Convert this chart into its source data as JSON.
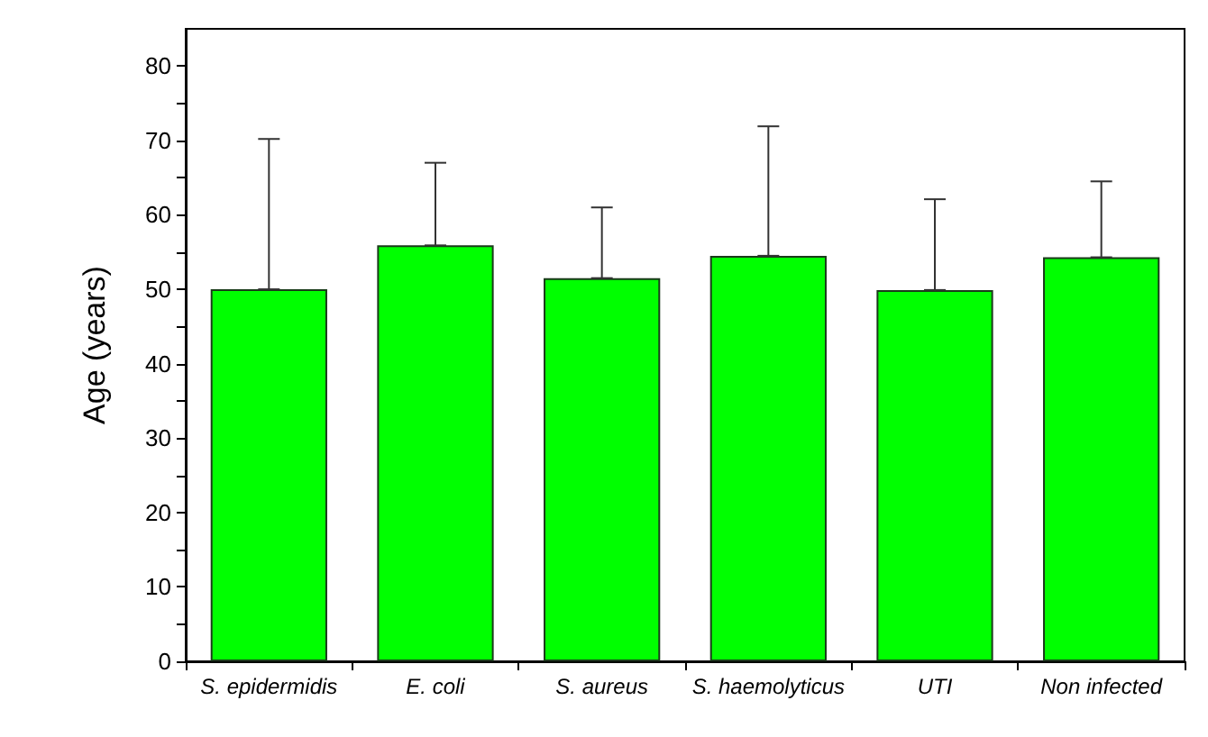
{
  "chart_data": {
    "type": "bar",
    "ylabel": "Age (years)",
    "categories": [
      "S. epidermidis",
      "E. coli",
      "S. aureus",
      "S. haemolyticus",
      "UTI",
      "Non infected"
    ],
    "values": [
      50.0,
      55.9,
      51.5,
      54.5,
      49.9,
      54.3
    ],
    "errors": [
      [
        50.0,
        70.2
      ],
      [
        55.9,
        67.0
      ],
      [
        51.5,
        61.0
      ],
      [
        54.5,
        71.9
      ],
      [
        49.9,
        62.1
      ],
      [
        54.3,
        64.5
      ]
    ],
    "color": "#00ff00",
    "ylim": [
      0,
      85
    ],
    "yticks": [
      0,
      10,
      20,
      30,
      40,
      50,
      60,
      70,
      80
    ],
    "grid": false
  }
}
